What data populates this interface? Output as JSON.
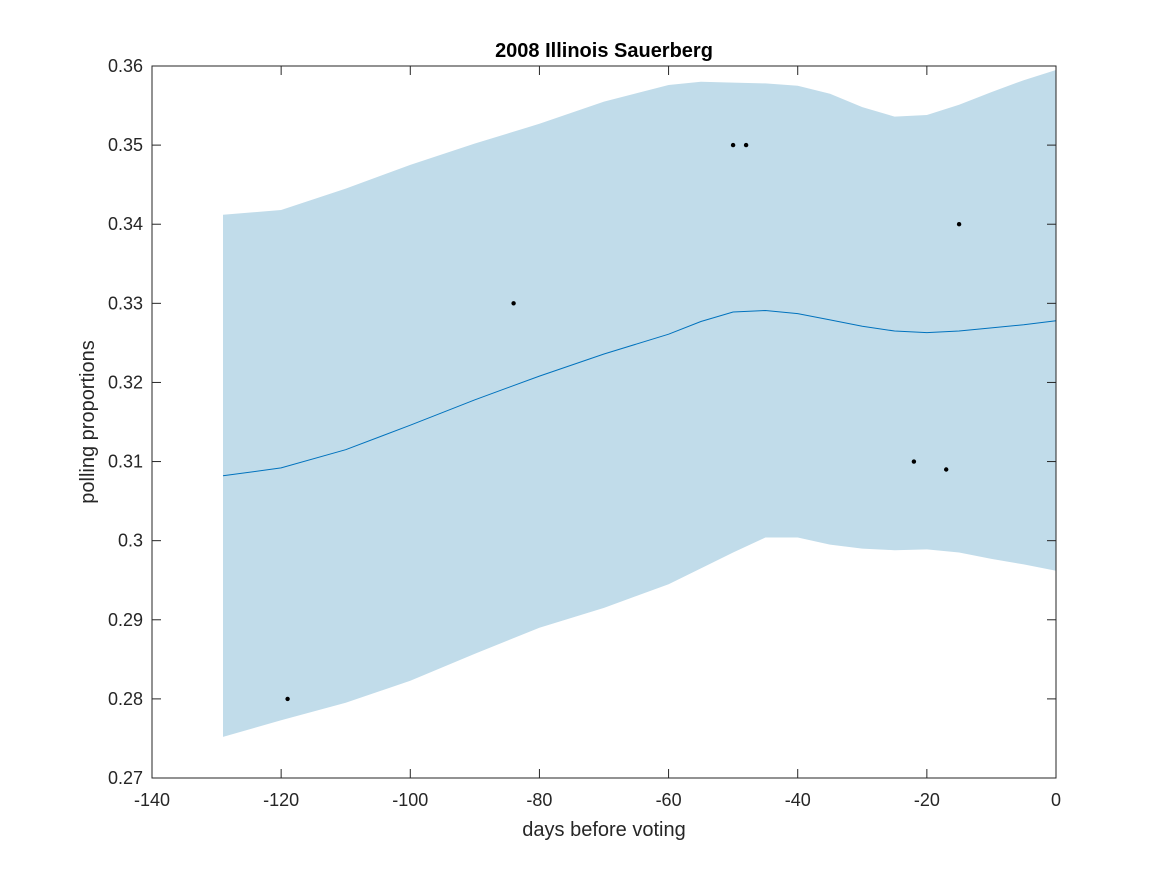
{
  "chart_data": {
    "type": "line",
    "title": "2008 Illinois Sauerberg",
    "xlabel": "days before voting",
    "ylabel": "polling proportions",
    "xlim": [
      -140,
      0
    ],
    "ylim": [
      0.27,
      0.36
    ],
    "xticks": [
      -140,
      -120,
      -100,
      -80,
      -60,
      -40,
      -20,
      0
    ],
    "yticks": [
      0.27,
      0.28,
      0.29,
      0.3,
      0.31,
      0.32,
      0.33,
      0.34,
      0.35,
      0.36
    ],
    "xtick_labels": [
      "-140",
      "-120",
      "-100",
      "-80",
      "-60",
      "-40",
      "-20",
      "0"
    ],
    "ytick_labels": [
      "0.27",
      "0.28",
      "0.29",
      "0.3",
      "0.31",
      "0.32",
      "0.33",
      "0.34",
      "0.35",
      "0.36"
    ],
    "grid": false,
    "band": {
      "color": "#c1dcea",
      "x": [
        -129,
        -120,
        -110,
        -100,
        -90,
        -80,
        -70,
        -60,
        -55,
        -50,
        -45,
        -40,
        -35,
        -30,
        -25,
        -20,
        -15,
        -10,
        -5,
        0
      ],
      "upper": [
        0.3412,
        0.3418,
        0.3445,
        0.3475,
        0.3502,
        0.3527,
        0.3555,
        0.3576,
        0.358,
        0.3579,
        0.3578,
        0.3575,
        0.3565,
        0.3548,
        0.3536,
        0.3538,
        0.3551,
        0.3567,
        0.3582,
        0.3595
      ],
      "lower": [
        0.2752,
        0.2773,
        0.2795,
        0.2823,
        0.2857,
        0.289,
        0.2915,
        0.2945,
        0.2965,
        0.2985,
        0.3004,
        0.3004,
        0.2995,
        0.299,
        0.2988,
        0.2989,
        0.2985,
        0.2977,
        0.297,
        0.2962
      ]
    },
    "series": [
      {
        "type": "line",
        "color": "#0072bd",
        "x": [
          -129,
          -120,
          -110,
          -100,
          -90,
          -80,
          -70,
          -60,
          -55,
          -50,
          -45,
          -40,
          -35,
          -30,
          -25,
          -20,
          -15,
          -10,
          -5,
          0
        ],
        "y": [
          0.3082,
          0.3092,
          0.3115,
          0.3146,
          0.3178,
          0.3208,
          0.3236,
          0.3261,
          0.3277,
          0.3289,
          0.3291,
          0.3287,
          0.3279,
          0.3271,
          0.3265,
          0.3263,
          0.3265,
          0.3269,
          0.3273,
          0.3278
        ]
      },
      {
        "type": "scatter",
        "color": "#000000",
        "x": [
          -119,
          -84,
          -50,
          -48,
          -22,
          -17,
          -15
        ],
        "y": [
          0.28,
          0.33,
          0.35,
          0.35,
          0.31,
          0.309,
          0.34
        ]
      }
    ]
  }
}
